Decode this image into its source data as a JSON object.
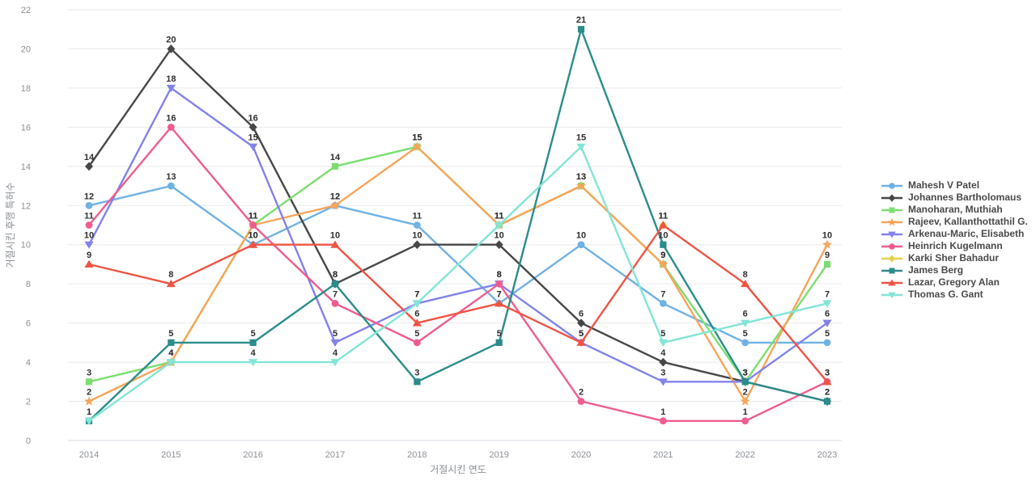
{
  "chart_data": {
    "type": "line",
    "title": "",
    "xlabel": "거절시킨 연도",
    "ylabel": "거절시킨 후행 특허수",
    "x": [
      2014,
      2015,
      2016,
      2017,
      2018,
      2019,
      2020,
      2021,
      2022,
      2023
    ],
    "ylim": [
      0,
      22
    ],
    "yticks": [
      0,
      2,
      4,
      6,
      8,
      10,
      12,
      14,
      16,
      18,
      20,
      22
    ],
    "grid": "horizontal",
    "legend_position": "right",
    "show_point_labels": true,
    "series": [
      {
        "name": "Mahesh V Patel",
        "color": "#6fb2e4",
        "marker": "circle",
        "values": [
          12,
          13,
          10,
          12,
          11,
          7,
          10,
          7,
          5,
          5
        ]
      },
      {
        "name": "Johannes Bartholomaus",
        "color": "#474747",
        "marker": "diamond",
        "values": [
          14,
          20,
          16,
          8,
          10,
          10,
          6,
          4,
          3,
          2
        ]
      },
      {
        "name": "Manoharan, Muthiah",
        "color": "#7cde71",
        "marker": "square",
        "values": [
          3,
          4,
          11,
          14,
          15,
          11,
          13,
          9,
          3,
          9
        ]
      },
      {
        "name": "Rajeev, Kallanthottathil G.",
        "color": "#f7a559",
        "marker": "star",
        "values": [
          2,
          4,
          11,
          12,
          15,
          11,
          13,
          9,
          2,
          10
        ]
      },
      {
        "name": "Arkenau-Maric, Elisabeth",
        "color": "#8282ea",
        "marker": "triangle-down",
        "values": [
          10,
          18,
          15,
          5,
          7,
          8,
          5,
          3,
          3,
          6
        ]
      },
      {
        "name": "Heinrich Kugelmann",
        "color": "#ee5d8d",
        "marker": "circle",
        "values": [
          11,
          16,
          11,
          7,
          5,
          8,
          2,
          1,
          1,
          3
        ]
      },
      {
        "name": "Karki Sher Bahadur",
        "color": "#e5d24f",
        "marker": "diamond",
        "values": [
          null,
          null,
          null,
          null,
          null,
          null,
          null,
          11,
          null,
          null
        ]
      },
      {
        "name": "James Berg",
        "color": "#2b8d8a",
        "marker": "square",
        "values": [
          1,
          5,
          5,
          8,
          3,
          5,
          21,
          10,
          3,
          2
        ]
      },
      {
        "name": "Lazar, Gregory Alan",
        "color": "#ee5444",
        "marker": "triangle-up",
        "values": [
          9,
          8,
          10,
          10,
          6,
          7,
          5,
          11,
          8,
          3
        ]
      },
      {
        "name": "Thomas G. Gant",
        "color": "#82e5d6",
        "marker": "triangle-down",
        "values": [
          1,
          4,
          4,
          4,
          7,
          11,
          15,
          5,
          6,
          7
        ]
      }
    ]
  },
  "colors": {
    "grid": "#e9eaec",
    "axis_line": "#d6dce2",
    "tick_text": "#8b9096",
    "point_label_text": "#2f2f2f",
    "legend_text": "#4a4a4a",
    "background": "#ffffff"
  }
}
